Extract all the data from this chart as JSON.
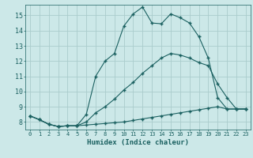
{
  "xlabel": "Humidex (Indice chaleur)",
  "bg_color": "#cce8e8",
  "grid_color": "#aacccc",
  "line_color": "#1a6060",
  "xlim": [
    -0.5,
    23.5
  ],
  "ylim": [
    7.5,
    15.7
  ],
  "yticks": [
    8,
    9,
    10,
    11,
    12,
    13,
    14,
    15
  ],
  "xticks": [
    0,
    1,
    2,
    3,
    4,
    5,
    6,
    7,
    8,
    9,
    10,
    11,
    12,
    13,
    14,
    15,
    16,
    17,
    18,
    19,
    20,
    21,
    22,
    23
  ],
  "line1_x": [
    0,
    1,
    2,
    3,
    4,
    5,
    6,
    7,
    8,
    9,
    10,
    11,
    12,
    13,
    14,
    15,
    16,
    17,
    18,
    19,
    20,
    21,
    22,
    23
  ],
  "line1_y": [
    8.4,
    8.15,
    7.85,
    7.7,
    7.75,
    7.75,
    7.8,
    7.85,
    7.9,
    7.95,
    8.0,
    8.1,
    8.2,
    8.3,
    8.4,
    8.5,
    8.6,
    8.7,
    8.8,
    8.9,
    9.0,
    8.85,
    8.85,
    8.85
  ],
  "line2_x": [
    0,
    1,
    2,
    3,
    4,
    5,
    6,
    7,
    8,
    9,
    10,
    11,
    12,
    13,
    14,
    15,
    16,
    17,
    18,
    19,
    20,
    21,
    22,
    23
  ],
  "line2_y": [
    8.4,
    8.15,
    7.85,
    7.7,
    7.75,
    7.75,
    8.5,
    11.0,
    12.0,
    12.5,
    14.3,
    15.1,
    15.55,
    14.5,
    14.45,
    15.1,
    14.85,
    14.5,
    13.6,
    12.2,
    9.6,
    8.85,
    8.85,
    8.85
  ],
  "line3_x": [
    0,
    1,
    2,
    3,
    4,
    5,
    6,
    7,
    8,
    9,
    10,
    11,
    12,
    13,
    14,
    15,
    16,
    17,
    18,
    19,
    20,
    21,
    22,
    23
  ],
  "line3_y": [
    8.4,
    8.15,
    7.85,
    7.7,
    7.75,
    7.75,
    8.0,
    8.6,
    9.0,
    9.5,
    10.1,
    10.6,
    11.2,
    11.7,
    12.2,
    12.5,
    12.4,
    12.2,
    11.9,
    11.7,
    10.5,
    9.6,
    8.85,
    8.85
  ]
}
